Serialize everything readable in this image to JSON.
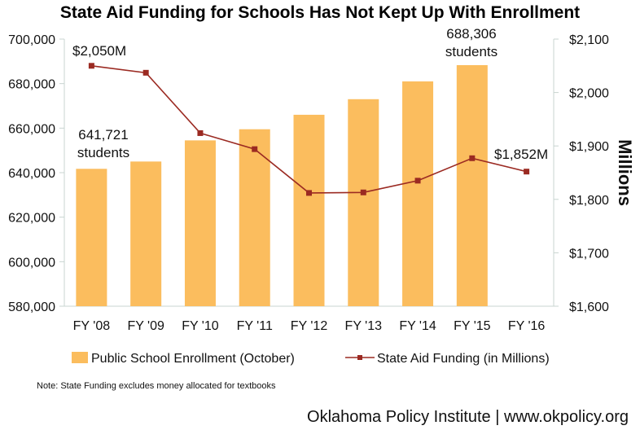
{
  "chart_data": {
    "type": "bar",
    "title": "State Aid Funding for Schools Has Not Kept Up With Enrollment",
    "categories": [
      "FY '08",
      "FY '09",
      "FY '10",
      "FY '11",
      "FY '12",
      "FY '13",
      "FY '14",
      "FY '15",
      "FY '16"
    ],
    "series": [
      {
        "name": "Public School Enrollment (October)",
        "type": "bar",
        "axis": "left",
        "color": "#fbbd5e",
        "values": [
          641721,
          645000,
          654500,
          659500,
          666000,
          673000,
          681000,
          688306,
          null
        ]
      },
      {
        "name": "State Aid Funding (in Millions)",
        "type": "line",
        "axis": "right",
        "color": "#9b2a22",
        "values": [
          2050,
          2037,
          1924,
          1894,
          1812,
          1813,
          1835,
          1877,
          1852
        ]
      }
    ],
    "y_left": {
      "ylim": [
        580000,
        700000
      ],
      "ticks": [
        "580,000",
        "600,000",
        "620,000",
        "640,000",
        "660,000",
        "680,000",
        "700,000"
      ]
    },
    "y_right": {
      "ylim": [
        1600,
        2100
      ],
      "label": "Millions",
      "ticks": [
        "$1,600",
        "$1,700",
        "$1,800",
        "$1,900",
        "$2,000",
        "$2,100"
      ]
    },
    "annotations": {
      "first_funding": "$2,050M",
      "first_enroll_value": "641,721",
      "first_enroll_unit": "students",
      "peak_enroll_value": "688,306",
      "peak_enroll_unit": "students",
      "last_funding": "$1,852M"
    },
    "grid": false,
    "legend_position": "bottom"
  },
  "note": "Note: State Funding excludes money allocated for textbooks",
  "credit": "Oklahoma Policy Institute | www.okpolicy.org"
}
